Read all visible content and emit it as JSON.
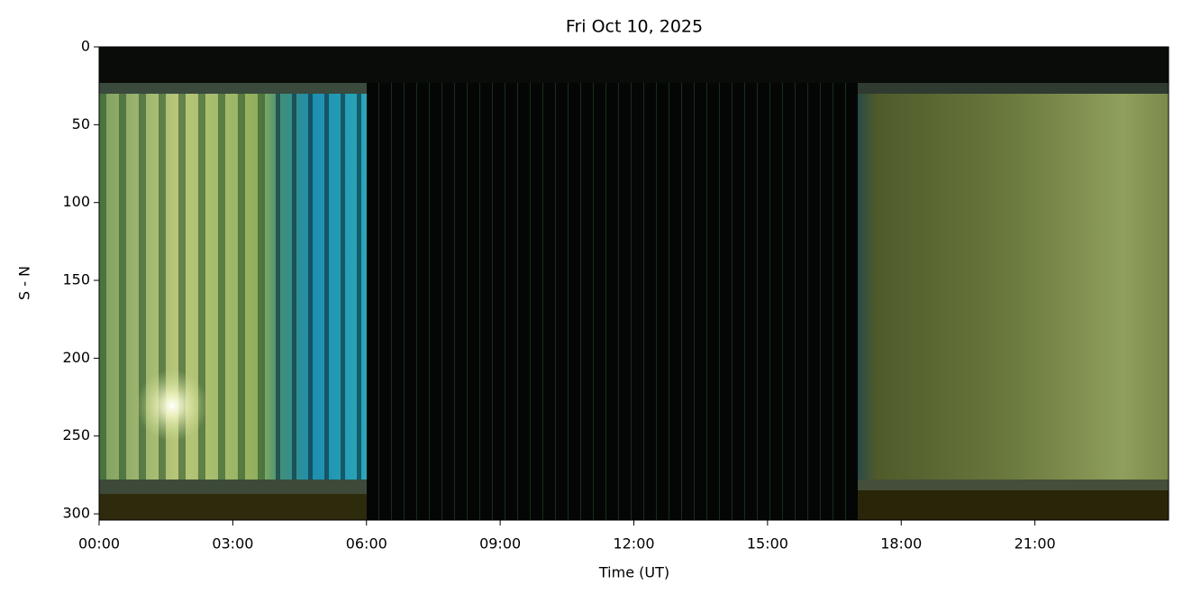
{
  "chart_data": {
    "type": "image",
    "title": "Fri Oct 10, 2025",
    "xlabel": "Time (UT)",
    "ylabel": "S - N",
    "xlim": [
      0,
      24
    ],
    "ylim": [
      304,
      0
    ],
    "xticks": [
      {
        "value": 0,
        "label": "00:00"
      },
      {
        "value": 3,
        "label": "03:00"
      },
      {
        "value": 6,
        "label": "06:00"
      },
      {
        "value": 9,
        "label": "09:00"
      },
      {
        "value": 12,
        "label": "12:00"
      },
      {
        "value": 15,
        "label": "15:00"
      },
      {
        "value": 18,
        "label": "18:00"
      },
      {
        "value": 21,
        "label": "21:00"
      }
    ],
    "yticks": [
      0,
      50,
      100,
      150,
      200,
      250,
      300
    ]
  }
}
